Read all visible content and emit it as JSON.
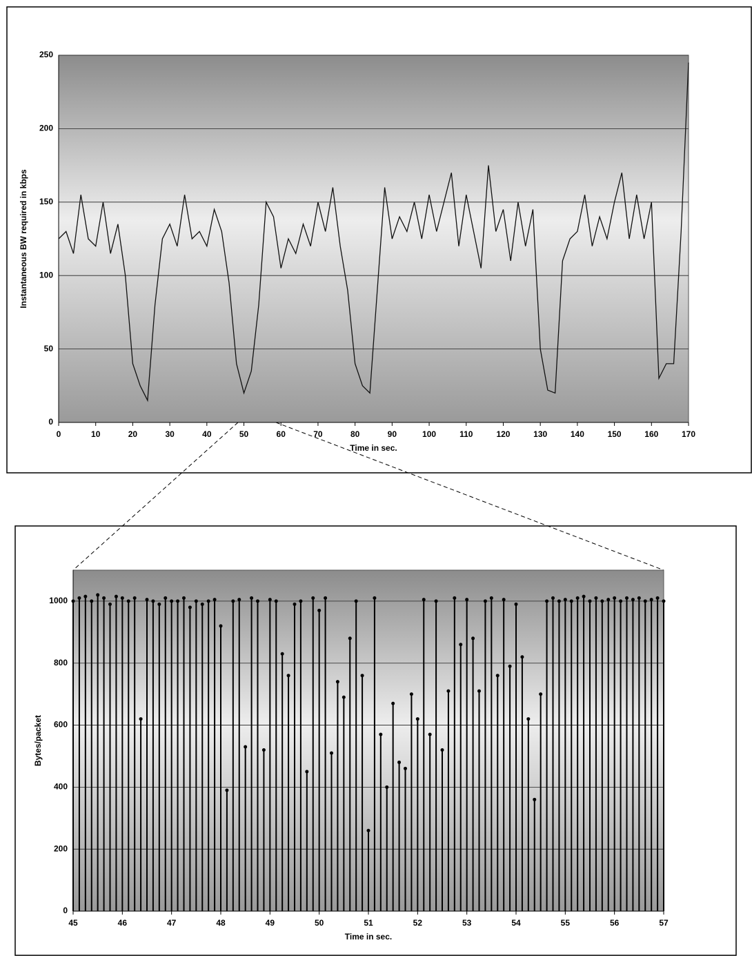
{
  "chart_data": [
    {
      "type": "line",
      "y_label": "Instantaneous BW required in kbps",
      "x_label": "Time in sec.",
      "color": "#111",
      "grid": true,
      "xlim": [
        0,
        170
      ],
      "xticks": [
        0,
        10,
        20,
        30,
        40,
        50,
        60,
        70,
        80,
        90,
        100,
        110,
        120,
        130,
        140,
        150,
        160,
        170
      ],
      "ylim": [
        0,
        250
      ],
      "yticks": [
        0,
        50,
        100,
        150,
        200,
        250
      ],
      "x": [
        0,
        2,
        4,
        6,
        8,
        10,
        12,
        14,
        16,
        18,
        20,
        22,
        24,
        26,
        28,
        30,
        32,
        34,
        36,
        38,
        40,
        42,
        44,
        46,
        48,
        50,
        52,
        54,
        56,
        58,
        60,
        62,
        64,
        66,
        68,
        70,
        72,
        74,
        76,
        78,
        80,
        82,
        84,
        86,
        88,
        90,
        92,
        94,
        96,
        98,
        100,
        102,
        104,
        106,
        108,
        110,
        112,
        114,
        116,
        118,
        120,
        122,
        124,
        126,
        128,
        130,
        132,
        134,
        136,
        138,
        140,
        142,
        144,
        146,
        148,
        150,
        152,
        154,
        156,
        158,
        160,
        162,
        164,
        166,
        168,
        170
      ],
      "values": [
        125,
        130,
        115,
        155,
        125,
        120,
        150,
        115,
        135,
        100,
        40,
        25,
        15,
        80,
        125,
        135,
        120,
        155,
        125,
        130,
        120,
        145,
        130,
        95,
        40,
        20,
        35,
        80,
        150,
        140,
        105,
        125,
        115,
        135,
        120,
        150,
        130,
        160,
        120,
        90,
        40,
        25,
        20,
        90,
        160,
        125,
        140,
        130,
        150,
        125,
        155,
        130,
        150,
        170,
        120,
        155,
        130,
        105,
        175,
        130,
        145,
        110,
        150,
        120,
        145,
        50,
        22,
        20,
        110,
        125,
        130,
        155,
        120,
        140,
        125,
        150,
        170,
        125,
        155,
        125,
        150,
        30,
        40,
        40,
        130,
        245
      ]
    },
    {
      "type": "stem",
      "y_label": "Bytes/packet",
      "x_label": "Time in sec.",
      "color": "#000",
      "grid": true,
      "xlim": [
        45,
        57
      ],
      "xticks": [
        45,
        46,
        47,
        48,
        49,
        50,
        51,
        52,
        53,
        54,
        55,
        56,
        57
      ],
      "ylim": [
        0,
        1100
      ],
      "yticks": [
        0,
        200,
        400,
        600,
        800,
        1000
      ],
      "x": [
        45,
        45.125,
        45.25,
        45.375,
        45.5,
        45.625,
        45.75,
        45.875,
        46,
        46.125,
        46.25,
        46.375,
        46.5,
        46.625,
        46.75,
        46.875,
        47,
        47.125,
        47.25,
        47.375,
        47.5,
        47.625,
        47.75,
        47.875,
        48,
        48.125,
        48.25,
        48.375,
        48.5,
        48.625,
        48.75,
        48.875,
        49,
        49.125,
        49.25,
        49.375,
        49.5,
        49.625,
        49.75,
        49.875,
        50,
        50.125,
        50.25,
        50.375,
        50.5,
        50.625,
        50.75,
        50.875,
        51,
        51.125,
        51.25,
        51.375,
        51.5,
        51.625,
        51.75,
        51.875,
        52,
        52.125,
        52.25,
        52.375,
        52.5,
        52.625,
        52.75,
        52.875,
        53,
        53.125,
        53.25,
        53.375,
        53.5,
        53.625,
        53.75,
        53.875,
        54,
        54.125,
        54.25,
        54.375,
        54.5,
        54.625,
        54.75,
        54.875,
        55,
        55.125,
        55.25,
        55.375,
        55.5,
        55.625,
        55.75,
        55.875,
        56,
        56.125,
        56.25,
        56.375,
        56.5,
        56.625,
        56.75,
        56.875,
        57
      ],
      "values": [
        1000,
        1010,
        1015,
        1000,
        1020,
        1010,
        990,
        1015,
        1010,
        1000,
        1010,
        620,
        1005,
        1000,
        990,
        1010,
        1000,
        1000,
        1010,
        980,
        1000,
        990,
        1000,
        1005,
        920,
        390,
        1000,
        1005,
        530,
        1010,
        1000,
        520,
        1005,
        1000,
        830,
        760,
        990,
        1000,
        450,
        1010,
        970,
        1010,
        510,
        740,
        690,
        880,
        1000,
        760,
        260,
        1010,
        570,
        400,
        670,
        480,
        460,
        700,
        620,
        1005,
        570,
        1000,
        520,
        710,
        1010,
        860,
        1005,
        880,
        710,
        1000,
        1010,
        760,
        1005,
        790,
        990,
        820,
        620,
        360,
        700,
        1000,
        1010,
        1000,
        1005,
        1000,
        1010,
        1015,
        1000,
        1010,
        1000,
        1005,
        1010,
        1000,
        1010,
        1005,
        1010,
        1000,
        1005,
        1010,
        1000
      ]
    }
  ]
}
